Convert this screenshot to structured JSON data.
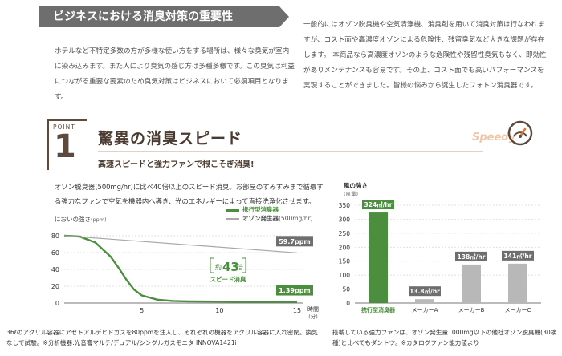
{
  "banner": {
    "title": "ビジネスにおける消臭対策の重要性"
  },
  "intro": {
    "left": "ホテルなど不特定多数の方が多様な使い方をする場所は、様々な臭気が室内に染み込みます。また人により臭気の感じ方は多種多様です。この臭気は利益につながる重要な要素のため臭気対策はビジネスにおいて必須項目となります。",
    "right": "一般的にはオゾン脱臭機や空気清浄機、消臭剤を用いて消臭対策は行なわれますが、コスト面や高濃度オゾンによる危険性、残留臭気など大きな課題が存在します。 本商品なら高濃度オゾンのような危険性や残留性臭気もなく、即効性がありメンテナンスも容易です。その上、コスト面でも高いパフォーマンスを実現することができました。皆様の悩みから誕生したフォトン消臭器です。"
  },
  "point": {
    "word": "POINT",
    "number": "1",
    "heading": "驚異の消臭スピード",
    "subheading": "高速スピードと強力ファンで根こそぎ消臭!",
    "badge": "Speedy",
    "badge_icon": "speedometer-icon"
  },
  "description": "オゾン脱臭器(500mg/hr)に比べ40倍以上のスピード消臭。お部屋のすみずみまで循環する強力なファンで空気を機器内へ導き、光のエネルギーによって直接洗浄化させます。",
  "line_chart_labels": {
    "ylabel": "においの強さ",
    "yunit": "(ppm)",
    "legend_green": "携行型消臭器",
    "legend_gray": "オゾン発生器",
    "legend_gray_unit": "(500mg/hr)",
    "label_gray_end": "59.7ppm",
    "label_green_end": "1.39ppm",
    "annot_prefix": "約",
    "annot_value": "43",
    "annot_suffix": "倍",
    "annot_caption": "スピード消臭",
    "xlabel": "時間",
    "xunit": "(分)"
  },
  "bar_chart_labels": {
    "title": "風の強さ",
    "unit": "(風量)"
  },
  "chart_data": [
    {
      "type": "line",
      "title": "",
      "xlabel": "時間(分)",
      "ylabel": "においの強さ(ppm)",
      "xlim": [
        0,
        15
      ],
      "ylim": [
        0,
        80
      ],
      "xticks": [
        5,
        10,
        15
      ],
      "yticks": [
        0,
        20,
        40,
        60,
        80
      ],
      "grid": true,
      "legend": "top-right",
      "series": [
        {
          "name": "携行型消臭器",
          "color": "#4b8f3e",
          "x": [
            0,
            1,
            2,
            3,
            3.5,
            4,
            4.5,
            5,
            6,
            7,
            8,
            10,
            12,
            15
          ],
          "y": [
            80,
            79,
            72,
            55,
            42,
            28,
            16,
            9,
            4,
            2.5,
            2,
            1.7,
            1.5,
            1.39
          ]
        },
        {
          "name": "オゾン発生器(500mg/hr)",
          "color": "#a8a8a8",
          "x": [
            0,
            15
          ],
          "y": [
            80,
            59.7
          ]
        }
      ]
    },
    {
      "type": "bar",
      "title": "風の強さ",
      "ylabel": "(風量)",
      "categories": [
        "携行型消臭器",
        "メーカーA",
        "メーカーB",
        "メーカーC"
      ],
      "values": [
        324,
        13.8,
        138,
        141
      ],
      "value_labels": [
        "324㎥/hr",
        "13.8㎥/hr",
        "138㎥/hr",
        "141㎥/hr"
      ],
      "colors": [
        "#4b8f3e",
        "#b8b8b8",
        "#b8b8b8",
        "#b8b8b8"
      ],
      "label_colors": [
        "#4b8f3e",
        "#6e6e6e",
        "#6e6e6e",
        "#6e6e6e"
      ],
      "ylim": [
        0,
        350
      ],
      "yticks": [
        0,
        50,
        100,
        150,
        200,
        250,
        300,
        350
      ],
      "grid": true
    }
  ],
  "footnotes": {
    "left": "36ℓのアクリル容器にアセトアルデヒドガスを80ppmを注入し、それぞれの機器をアクリル容器に入れ密閉。換気なしで試験。※分析機器:光音響マルチ/デュアル/シングルガスモニタ INNOVA1421i",
    "right": "搭載している強力ファンは、オゾン発生量1000mg以下の他社オゾン脱臭機(30検種)と比べてもダントツ。※カタログファン能力値より"
  },
  "colors": {
    "accent_green": "#4b8f3e",
    "banner_gray": "#6e6e6e",
    "point_brown": "#5b4a3d",
    "speedy_orange": "#f2c7a8"
  }
}
